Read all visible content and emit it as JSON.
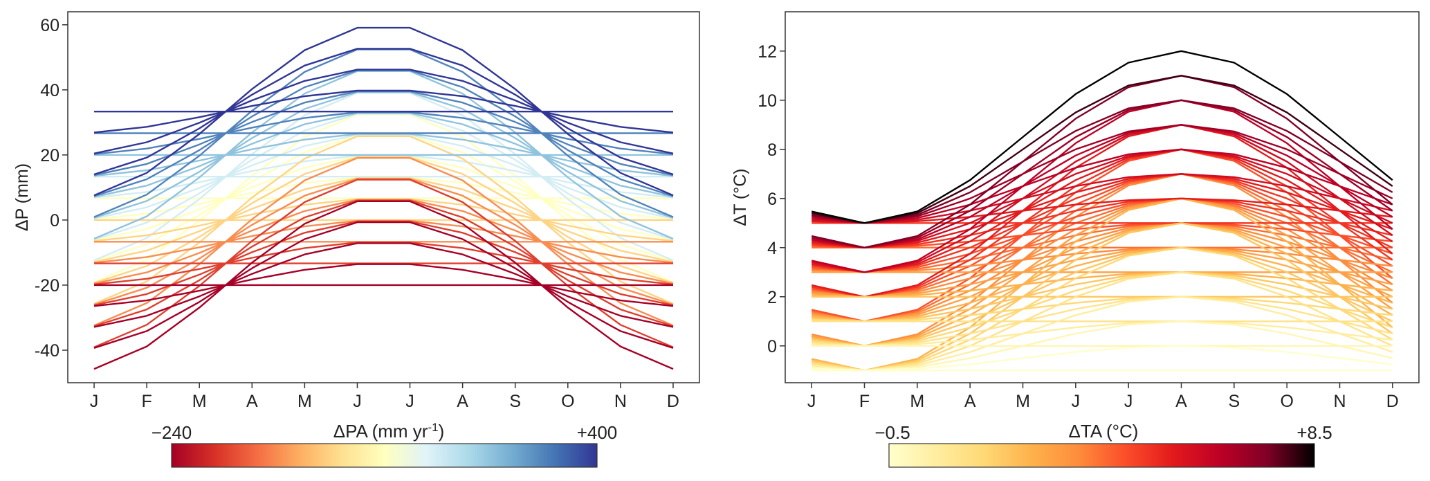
{
  "chart_data": [
    {
      "type": "line",
      "xlabel": "",
      "ylabel": "ΔP (mm)",
      "categories": [
        "J",
        "F",
        "M",
        "A",
        "M",
        "J",
        "J",
        "A",
        "S",
        "O",
        "N",
        "D"
      ],
      "yticks": [
        60,
        40,
        20,
        0,
        -20,
        -40
      ],
      "ytick_labels": [
        "60",
        "40",
        "20",
        "0",
        "-20",
        "-40"
      ],
      "ylim": [
        -50,
        64
      ],
      "grid": false,
      "legend": "none",
      "series_description": "monthly ΔP curves colored by annual ΔPA; seasonal amplitude 0–26.67 mm with offsets from -20 to 33.33 mm",
      "amplitudes": [
        26.6667,
        20,
        13.3333,
        6.6667,
        0
      ],
      "offsets": [
        -20,
        -13.3333,
        -6.6667,
        0,
        6.6667,
        13.3333,
        20,
        26.6667,
        33.3333
      ],
      "series": [],
      "colorbar": {
        "label": "ΔPA (mm yr",
        "label_sup": "-1",
        "label_end": ")",
        "min_label": "−240",
        "max_label": "+400",
        "min": -240,
        "max": 400,
        "colors": [
          "#a50026",
          "#d73027",
          "#f46d43",
          "#fdae61",
          "#fee090",
          "#ffffbf",
          "#e0f3f8",
          "#abd9e9",
          "#74add1",
          "#4575b4",
          "#313695"
        ]
      }
    },
    {
      "type": "line",
      "xlabel": "",
      "ylabel": "ΔT (°C)",
      "categories": [
        "J",
        "F",
        "M",
        "A",
        "M",
        "J",
        "J",
        "A",
        "S",
        "O",
        "N",
        "D"
      ],
      "yticks": [
        0,
        2,
        4,
        6,
        8,
        10,
        12
      ],
      "ytick_labels": [
        "0",
        "2",
        "4",
        "6",
        "8",
        "10",
        "12"
      ],
      "ylim": [
        -1.5,
        13.6
      ],
      "grid": false,
      "legend": "none",
      "series_description": "monthly ΔT curves colored by annual ΔTA; min in Feb, max in Aug",
      "min_values": [
        -1,
        0,
        1,
        2,
        3,
        4,
        5
      ],
      "amplitudes": [
        0,
        1,
        2,
        3,
        4,
        5,
        6,
        7
      ],
      "series": [],
      "colorbar": {
        "label": "ΔTA (°C)",
        "min_label": "−0.5",
        "max_label": "+8.5",
        "min": -0.5,
        "max": 8.5,
        "colors": [
          "#ffffcc",
          "#ffeda0",
          "#fed976",
          "#feb24c",
          "#fd8d3c",
          "#fc4e2a",
          "#e31a1c",
          "#bd0026",
          "#800026",
          "#000000"
        ]
      }
    }
  ]
}
